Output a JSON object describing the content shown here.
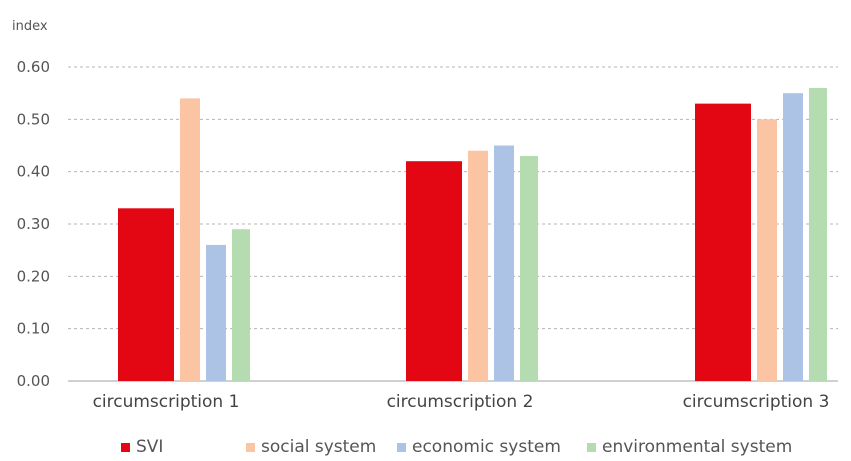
{
  "chart_data": {
    "type": "bar",
    "ylabel": "index",
    "ylim": [
      0,
      0.6
    ],
    "yticks": [
      "0.00",
      "0.10",
      "0.20",
      "0.30",
      "0.40",
      "0.50",
      "0.60"
    ],
    "grid": true,
    "legend_position": "bottom",
    "categories": [
      "circumscription 1",
      "circumscription 2",
      "circumscription 3"
    ],
    "series": [
      {
        "name": "SVI",
        "color": "#e30613",
        "values": [
          0.33,
          0.42,
          0.53
        ]
      },
      {
        "name": "social system",
        "color": "#fbc5a3",
        "values": [
          0.54,
          0.44,
          0.5
        ]
      },
      {
        "name": "economic system",
        "color": "#adc3e6",
        "values": [
          0.26,
          0.45,
          0.55
        ]
      },
      {
        "name": "environmental system",
        "color": "#b5dcb0",
        "values": [
          0.29,
          0.43,
          0.56
        ]
      }
    ]
  }
}
